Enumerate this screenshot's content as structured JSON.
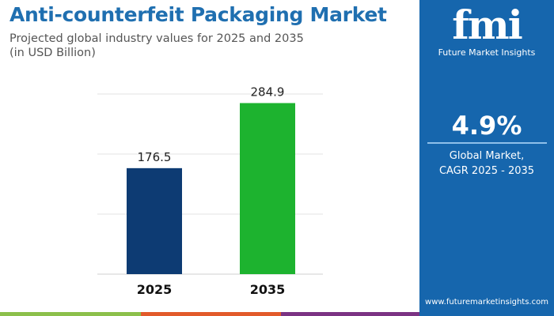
{
  "header": {
    "title": "Anti-counterfeit Packaging Market",
    "subtitle_line1": "Projected global industry values for 2025 and 2035",
    "subtitle_line2": "(in USD Billion)"
  },
  "panel": {
    "logo_text": "fmi",
    "brand": "Future Market Insights",
    "cagr_value": "4.9%",
    "cagr_label_line1": "Global Market,",
    "cagr_label_line2": "CAGR 2025 - 2035",
    "url": "www.futuremarketinsights.com"
  },
  "colors": {
    "bar_2025": "#0d3b73",
    "bar_2035": "#1db32f",
    "panel": "#1666ad",
    "title": "#1f6fb0",
    "strip": [
      "#8cc04b",
      "#e25a2a",
      "#7b3383"
    ]
  },
  "chart_data": {
    "type": "bar",
    "title": "Anti-counterfeit Packaging Market",
    "categories": [
      "2025",
      "2035"
    ],
    "values": [
      176.5,
      284.9
    ],
    "value_labels": [
      "176.5",
      "284.9"
    ],
    "ylim": [
      0,
      300
    ],
    "grid": true,
    "yticks_shown": false
  }
}
